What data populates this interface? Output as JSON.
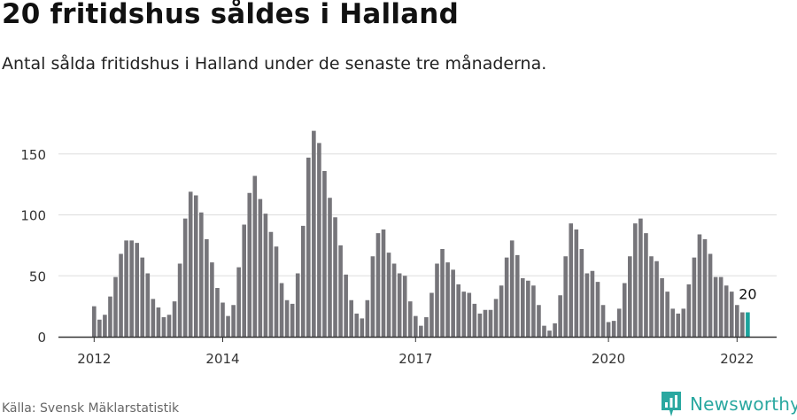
{
  "header": {
    "title": "20 fritidshus såldes i Halland",
    "subtitle": "Antal sålda fritidshus i Halland under de senaste tre månaderna."
  },
  "footer": {
    "source": "Källa: Svensk Mäklarstatistik",
    "brand": "Newsworthy"
  },
  "colors": {
    "bar": "#76757a",
    "highlight": "#1ba39c",
    "grid": "#dddddd",
    "axis": "#333333",
    "brand": "#2aa8a0"
  },
  "icons": {
    "brand_logo": "newsworthy-logo-icon"
  },
  "chart_data": {
    "type": "bar",
    "x_start": "2012-01",
    "x_step": "month",
    "xticks": [
      "2012",
      "2014",
      "2017",
      "2020",
      "2022"
    ],
    "yticks": [
      0,
      50,
      100,
      150
    ],
    "ylim": [
      0,
      170
    ],
    "grid": true,
    "highlight_last": true,
    "last_label": "20",
    "values": [
      25,
      14,
      18,
      33,
      49,
      68,
      79,
      79,
      77,
      65,
      52,
      31,
      24,
      16,
      18,
      29,
      60,
      97,
      119,
      116,
      102,
      80,
      61,
      40,
      28,
      17,
      26,
      57,
      92,
      118,
      132,
      113,
      101,
      86,
      74,
      44,
      30,
      27,
      52,
      91,
      147,
      169,
      159,
      136,
      114,
      98,
      75,
      51,
      30,
      19,
      15,
      30,
      66,
      85,
      88,
      69,
      60,
      52,
      50,
      29,
      17,
      9,
      16,
      36,
      60,
      72,
      61,
      55,
      43,
      37,
      36,
      27,
      19,
      22,
      22,
      31,
      42,
      65,
      79,
      67,
      48,
      46,
      42,
      26,
      9,
      5,
      11,
      34,
      66,
      93,
      88,
      72,
      52,
      54,
      45,
      26,
      12,
      13,
      23,
      44,
      66,
      93,
      97,
      85,
      66,
      62,
      48,
      37,
      23,
      19,
      23,
      43,
      65,
      84,
      80,
      68,
      49,
      49,
      42,
      37,
      26,
      20,
      20
    ]
  }
}
